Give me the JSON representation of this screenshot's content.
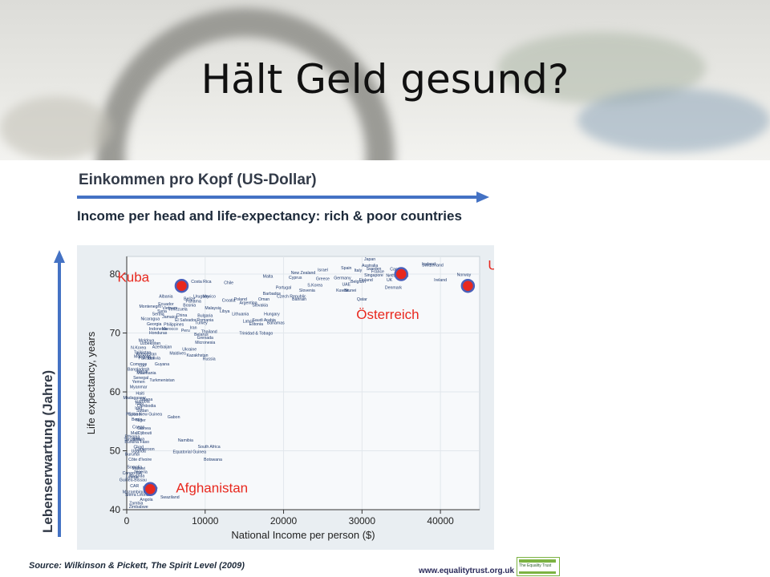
{
  "slide": {
    "title": "Hält Geld gesund?",
    "income_label": "Einkommen pro Kopf (US-Dollar)",
    "life_expectancy_label": "Lebenserwartung (Jahre)",
    "chart_heading": "Income per head and life-expectancy: rich & poor countries",
    "source": "Source: Wilkinson & Pickett, The Spirit Level (2009)",
    "footer_url": "www.equalitytrust.org.uk",
    "footer_logo": "The Equality Trust"
  },
  "colors": {
    "arrow": "#4472c4",
    "highlight_fill": "#e8281e",
    "highlight_ring": "#4a5fb8",
    "annotation": "#e8281e",
    "dot_label": "#1f3a6e",
    "footer_green": "#7cb342"
  },
  "chart_data": {
    "type": "scatter",
    "xlabel": "National Income per person ($)",
    "ylabel": "Life expectancy, years",
    "xlim": [
      0,
      45000
    ],
    "ylim": [
      40,
      83
    ],
    "xticks": [
      0,
      10000,
      20000,
      30000,
      40000
    ],
    "xtick_labels": [
      "0",
      "10000",
      "20000",
      "30000",
      "40000"
    ],
    "yticks": [
      40,
      50,
      60,
      70,
      80
    ],
    "grid": true,
    "highlights": [
      {
        "label": "Kuba",
        "x": 7000,
        "y": 78
      },
      {
        "label": "Afghanistan",
        "x": 3000,
        "y": 43.5
      },
      {
        "label": "Österreich",
        "x": 35000,
        "y": 80
      },
      {
        "label": "USA",
        "x": 43500,
        "y": 78
      }
    ],
    "points": [
      {
        "name": "Japan",
        "x": 31000,
        "y": 82.3
      },
      {
        "name": "Iceland",
        "x": 38500,
        "y": 81.5
      },
      {
        "name": "Australia",
        "x": 31000,
        "y": 81.2
      },
      {
        "name": "Switzerland",
        "x": 39000,
        "y": 81.3
      },
      {
        "name": "Spain",
        "x": 28000,
        "y": 80.8
      },
      {
        "name": "Sweden",
        "x": 31500,
        "y": 80.7
      },
      {
        "name": "Canada",
        "x": 34500,
        "y": 80.6
      },
      {
        "name": "Israel",
        "x": 25000,
        "y": 80.5
      },
      {
        "name": "Italy",
        "x": 29500,
        "y": 80.4
      },
      {
        "name": "France",
        "x": 32000,
        "y": 80.2
      },
      {
        "name": "New Zealand",
        "x": 22500,
        "y": 80
      },
      {
        "name": "Netherlands",
        "x": 34500,
        "y": 79.5
      },
      {
        "name": "Norway",
        "x": 43000,
        "y": 79.7
      },
      {
        "name": "Singapore",
        "x": 31500,
        "y": 79.6
      },
      {
        "name": "Malta",
        "x": 18000,
        "y": 79.4
      },
      {
        "name": "Cyprus",
        "x": 21500,
        "y": 79.2
      },
      {
        "name": "Greece",
        "x": 25000,
        "y": 79
      },
      {
        "name": "Germany",
        "x": 27500,
        "y": 79.1
      },
      {
        "name": "Finland",
        "x": 30500,
        "y": 78.8
      },
      {
        "name": "Ireland",
        "x": 40000,
        "y": 78.8
      },
      {
        "name": "Costa Rica",
        "x": 9500,
        "y": 78.5
      },
      {
        "name": "Chile",
        "x": 13000,
        "y": 78.3
      },
      {
        "name": "S.Korea",
        "x": 24000,
        "y": 77.9
      },
      {
        "name": "UAE",
        "x": 28000,
        "y": 78
      },
      {
        "name": "Belgium",
        "x": 29500,
        "y": 78.5
      },
      {
        "name": "Portugal",
        "x": 20000,
        "y": 77.5
      },
      {
        "name": "Kuwait",
        "x": 27500,
        "y": 77
      },
      {
        "name": "Denmark",
        "x": 34000,
        "y": 77.5
      },
      {
        "name": "UK",
        "x": 33500,
        "y": 78.8
      },
      {
        "name": "Uruguay",
        "x": 9500,
        "y": 76
      },
      {
        "name": "Poland",
        "x": 14500,
        "y": 75.5
      },
      {
        "name": "Mexico",
        "x": 10500,
        "y": 76
      },
      {
        "name": "Albania",
        "x": 5000,
        "y": 76
      },
      {
        "name": "Barbados",
        "x": 18500,
        "y": 76.5
      },
      {
        "name": "Oman",
        "x": 17500,
        "y": 75.5
      },
      {
        "name": "Slovenia",
        "x": 23000,
        "y": 77
      },
      {
        "name": "Czech Republic",
        "x": 21000,
        "y": 76
      },
      {
        "name": "Bahrain",
        "x": 22000,
        "y": 75.5
      },
      {
        "name": "Brunei",
        "x": 28500,
        "y": 77
      },
      {
        "name": "Qatar",
        "x": 30000,
        "y": 75.5
      },
      {
        "name": "Belize",
        "x": 8000,
        "y": 75.6
      },
      {
        "name": "Panama",
        "x": 8500,
        "y": 75.2
      },
      {
        "name": "Croatia",
        "x": 13000,
        "y": 75.3
      },
      {
        "name": "Argentina",
        "x": 15500,
        "y": 74.9
      },
      {
        "name": "Slovakia",
        "x": 17000,
        "y": 74.5
      },
      {
        "name": "Ecuador",
        "x": 5000,
        "y": 74.7
      },
      {
        "name": "Bosnia",
        "x": 8000,
        "y": 74.5
      },
      {
        "name": "Montenegro",
        "x": 3000,
        "y": 74.3
      },
      {
        "name": "Vietnam",
        "x": 5500,
        "y": 74
      },
      {
        "name": "Venezuela",
        "x": 6500,
        "y": 73.8
      },
      {
        "name": "Malaysia",
        "x": 11000,
        "y": 74
      },
      {
        "name": "Libya",
        "x": 12500,
        "y": 73.5
      },
      {
        "name": "Hungary",
        "x": 18500,
        "y": 73
      },
      {
        "name": "Serbia",
        "x": 4000,
        "y": 73
      },
      {
        "name": "Syria",
        "x": 4500,
        "y": 73.5
      },
      {
        "name": "China",
        "x": 7000,
        "y": 72.8
      },
      {
        "name": "Lithuania",
        "x": 14500,
        "y": 73
      },
      {
        "name": "Bulgaria",
        "x": 10000,
        "y": 72.7
      },
      {
        "name": "Nicaragua",
        "x": 3000,
        "y": 72.2
      },
      {
        "name": "Jamaica",
        "x": 5500,
        "y": 72.5
      },
      {
        "name": "El Salvador",
        "x": 7500,
        "y": 72
      },
      {
        "name": "Romania",
        "x": 10000,
        "y": 72
      },
      {
        "name": "Latvia",
        "x": 15500,
        "y": 71.8
      },
      {
        "name": "Saudi Arabia",
        "x": 17500,
        "y": 72
      },
      {
        "name": "Turkey",
        "x": 9500,
        "y": 71.5
      },
      {
        "name": "Estonia",
        "x": 16500,
        "y": 71.3
      },
      {
        "name": "Bahamas",
        "x": 19000,
        "y": 71.5
      },
      {
        "name": "Georgia",
        "x": 3500,
        "y": 71.3
      },
      {
        "name": "Philippines",
        "x": 6000,
        "y": 71.2
      },
      {
        "name": "Indonesia",
        "x": 4000,
        "y": 70.5
      },
      {
        "name": "Morocco",
        "x": 5500,
        "y": 70.5
      },
      {
        "name": "Iran",
        "x": 8500,
        "y": 70.7
      },
      {
        "name": "Honduras",
        "x": 4000,
        "y": 69.8
      },
      {
        "name": "Peru",
        "x": 7500,
        "y": 70.2
      },
      {
        "name": "Belarus",
        "x": 9500,
        "y": 69.5
      },
      {
        "name": "Thailand",
        "x": 10500,
        "y": 70
      },
      {
        "name": "Trinidad & Tobago",
        "x": 16500,
        "y": 69.7
      },
      {
        "name": "Moldova",
        "x": 2500,
        "y": 68.5
      },
      {
        "name": "Uzbekistan",
        "x": 3000,
        "y": 68
      },
      {
        "name": "Grenada",
        "x": 10000,
        "y": 69
      },
      {
        "name": "Micronesia",
        "x": 10000,
        "y": 68.2
      },
      {
        "name": "N.Korea",
        "x": 1500,
        "y": 67.3
      },
      {
        "name": "Azerbaijan",
        "x": 4500,
        "y": 67.4
      },
      {
        "name": "Ukraine",
        "x": 8000,
        "y": 67
      },
      {
        "name": "Tajikistan",
        "x": 2000,
        "y": 66.5
      },
      {
        "name": "Kyrgyzstan",
        "x": 2500,
        "y": 66.2
      },
      {
        "name": "Maldives",
        "x": 6500,
        "y": 66.3
      },
      {
        "name": "Kazakhstan",
        "x": 9000,
        "y": 66
      },
      {
        "name": "Mongolia",
        "x": 2000,
        "y": 65.8
      },
      {
        "name": "Pakistan",
        "x": 2500,
        "y": 65.5
      },
      {
        "name": "Bolivia",
        "x": 3500,
        "y": 65.5
      },
      {
        "name": "Russia",
        "x": 10500,
        "y": 65.4
      },
      {
        "name": "Comoros",
        "x": 1500,
        "y": 64.5
      },
      {
        "name": "Lao",
        "x": 2000,
        "y": 64.3
      },
      {
        "name": "Guyana",
        "x": 4500,
        "y": 64.5
      },
      {
        "name": "Bangladesh",
        "x": 1500,
        "y": 63.6
      },
      {
        "name": "Nepal",
        "x": 2000,
        "y": 63.2
      },
      {
        "name": "Mauritania",
        "x": 2500,
        "y": 63
      },
      {
        "name": "Senegal",
        "x": 1800,
        "y": 62.2
      },
      {
        "name": "Yemen",
        "x": 1500,
        "y": 61.5
      },
      {
        "name": "Turkmenistan",
        "x": 4500,
        "y": 61.8
      },
      {
        "name": "Myanmar",
        "x": 1500,
        "y": 60.6
      },
      {
        "name": "Haiti",
        "x": 1700,
        "y": 59.5
      },
      {
        "name": "Madagascar",
        "x": 1000,
        "y": 58.8
      },
      {
        "name": "Gambia",
        "x": 2000,
        "y": 58.2
      },
      {
        "name": "Ghana",
        "x": 2500,
        "y": 58.5
      },
      {
        "name": "Togo",
        "x": 1600,
        "y": 57.8
      },
      {
        "name": "Cambodia",
        "x": 2500,
        "y": 57.4
      },
      {
        "name": "Iraq",
        "x": 1500,
        "y": 57
      },
      {
        "name": "Sudan",
        "x": 2000,
        "y": 56.6
      },
      {
        "name": "Papua New Guinea",
        "x": 2200,
        "y": 56
      },
      {
        "name": "Eritrea",
        "x": 1000,
        "y": 56
      },
      {
        "name": "Benin",
        "x": 1300,
        "y": 55.1
      },
      {
        "name": "Niger",
        "x": 1800,
        "y": 55
      },
      {
        "name": "Gabon",
        "x": 6000,
        "y": 55.5
      },
      {
        "name": "Congo",
        "x": 1500,
        "y": 53.8
      },
      {
        "name": "Guinea",
        "x": 2200,
        "y": 53.6
      },
      {
        "name": "Djibouti",
        "x": 2300,
        "y": 52.8
      },
      {
        "name": "Mali",
        "x": 1000,
        "y": 52.8
      },
      {
        "name": "Ethiopia",
        "x": 700,
        "y": 52.2
      },
      {
        "name": "Kenya",
        "x": 1500,
        "y": 51.8
      },
      {
        "name": "Tanzania",
        "x": 700,
        "y": 51.7
      },
      {
        "name": "Burkina Faso",
        "x": 1300,
        "y": 51.3
      },
      {
        "name": "Namibia",
        "x": 7500,
        "y": 51.6
      },
      {
        "name": "Chad",
        "x": 1500,
        "y": 50.4
      },
      {
        "name": "Cameroon",
        "x": 2300,
        "y": 50.1
      },
      {
        "name": "Uganda",
        "x": 1500,
        "y": 49.7
      },
      {
        "name": "Equatorial Guinea",
        "x": 8000,
        "y": 49.6
      },
      {
        "name": "South Africa",
        "x": 10500,
        "y": 50.5
      },
      {
        "name": "Burundi",
        "x": 700,
        "y": 49.2
      },
      {
        "name": "Botswana",
        "x": 11000,
        "y": 48.3
      },
      {
        "name": "Côte d'Ivoire",
        "x": 1700,
        "y": 48.3
      },
      {
        "name": "Somalia",
        "x": 1000,
        "y": 47
      },
      {
        "name": "Malawi",
        "x": 1500,
        "y": 46.8
      },
      {
        "name": "Congo-DR",
        "x": 700,
        "y": 46
      },
      {
        "name": "Nigeria",
        "x": 1800,
        "y": 46.2
      },
      {
        "name": "Rwanda",
        "x": 1300,
        "y": 45.5
      },
      {
        "name": "Liberia",
        "x": 700,
        "y": 45.3
      },
      {
        "name": "Guinea-Bissau",
        "x": 800,
        "y": 44.8
      },
      {
        "name": "CAR",
        "x": 1000,
        "y": 43.8
      },
      {
        "name": "Lesotho",
        "x": 3000,
        "y": 43.5
      },
      {
        "name": "Mozambique",
        "x": 1000,
        "y": 42.8
      },
      {
        "name": "Sierra Leone",
        "x": 1300,
        "y": 42.3
      },
      {
        "name": "Swaziland",
        "x": 5500,
        "y": 41.9
      },
      {
        "name": "Angola",
        "x": 2500,
        "y": 41.5
      },
      {
        "name": "Zambia",
        "x": 1200,
        "y": 40.9
      },
      {
        "name": "Zimbabwe",
        "x": 1500,
        "y": 40.3
      }
    ]
  }
}
